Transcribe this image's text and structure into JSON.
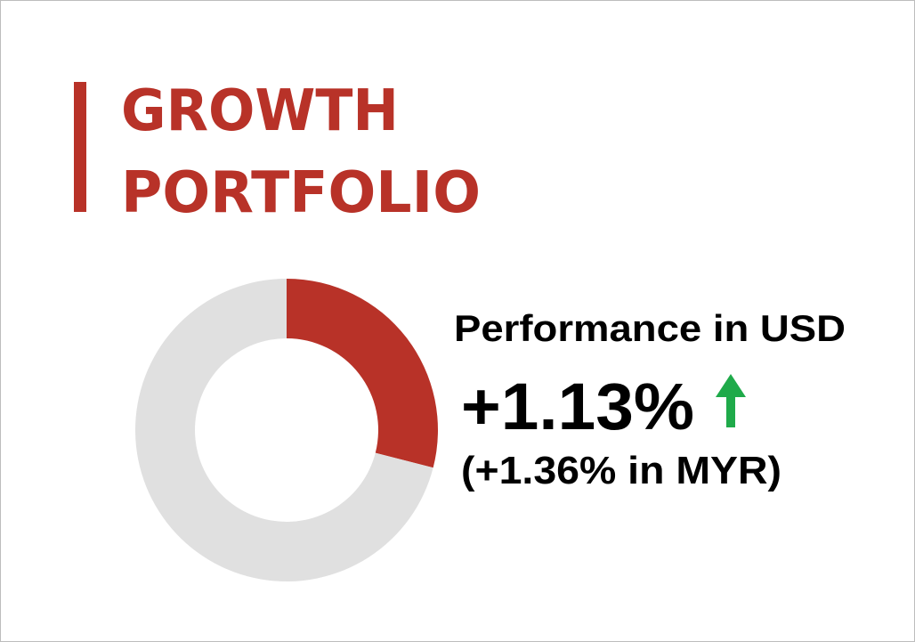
{
  "header": {
    "title_lines": [
      "GROWTH",
      "PORTFOLIO"
    ]
  },
  "donut": {
    "values": [
      29,
      71
    ],
    "colors": [
      "#b83228",
      "#e0e0e0"
    ]
  },
  "performance": {
    "label": "Performance in USD",
    "value": "+1.13%",
    "secondary": "(+1.36% in MYR)"
  }
}
